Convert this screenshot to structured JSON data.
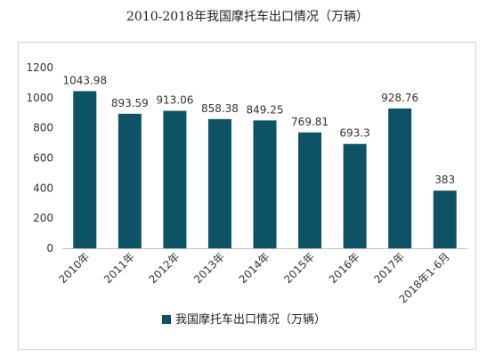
{
  "chart_title": "2010-2018年我国摩托车出口情况（万辆）",
  "chart_data": {
    "type": "bar",
    "title": "2010-2018年我国摩托车出口情况（万辆）",
    "categories": [
      "2010年",
      "2011年",
      "2012年",
      "2013年",
      "2014年",
      "2015年",
      "2016年",
      "2017年",
      "2018年1-6月"
    ],
    "series": [
      {
        "name": "我国摩托车出口情况（万辆）",
        "values": [
          1043.98,
          893.59,
          913.06,
          858.38,
          849.25,
          769.81,
          693.3,
          928.76,
          383
        ],
        "labels": [
          "1043.98",
          "893.59",
          "913.06",
          "858.38",
          "849.25",
          "769.81",
          "693.3",
          "928.76",
          "383"
        ],
        "color": "#0e5266"
      }
    ],
    "yticks": [
      "0",
      "200",
      "400",
      "600",
      "800",
      "1000",
      "1200"
    ],
    "ylim": [
      0,
      1200
    ],
    "xlabel": "",
    "ylabel": "",
    "grid": false,
    "legend_position": "bottom"
  }
}
